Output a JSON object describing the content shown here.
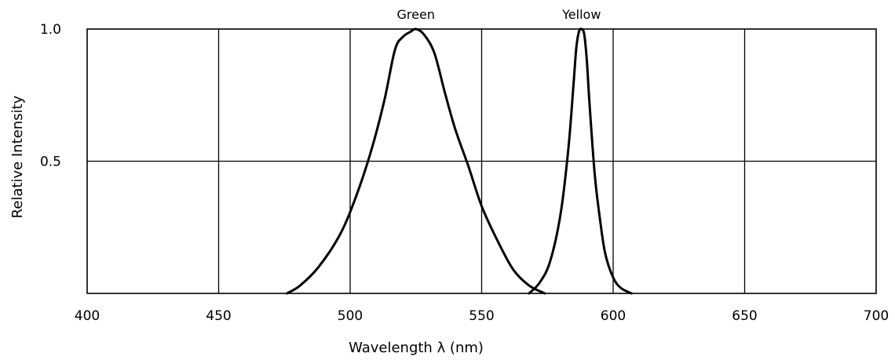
{
  "chart_data": {
    "type": "line",
    "title": "",
    "xlabel": "Wavelength λ (nm)",
    "ylabel": "Relative Intensity",
    "xlim": [
      400,
      700
    ],
    "ylim": [
      0,
      1.0
    ],
    "x_ticks": [
      400,
      450,
      500,
      550,
      600,
      650,
      700
    ],
    "x_tick_labels": [
      "400",
      "450",
      "500",
      "550",
      "600",
      "650",
      "700"
    ],
    "y_ticks": [
      0.5,
      1.0
    ],
    "y_tick_labels": [
      "0.5",
      "1.0"
    ],
    "grid": true,
    "legend": "none",
    "series": [
      {
        "name": "Green",
        "label_x": 525,
        "x": [
          476,
          481,
          488,
          496,
          502,
          508,
          513,
          517,
          520,
          523,
          525,
          528,
          532,
          536,
          540,
          545,
          550,
          556,
          562,
          568,
          574
        ],
        "y": [
          0.0,
          0.03,
          0.1,
          0.22,
          0.36,
          0.54,
          0.73,
          0.92,
          0.97,
          0.99,
          1.0,
          0.98,
          0.91,
          0.76,
          0.62,
          0.48,
          0.33,
          0.2,
          0.09,
          0.03,
          0.0
        ]
      },
      {
        "name": "Yellow",
        "label_x": 588,
        "x": [
          568,
          572,
          576,
          580,
          583,
          585,
          586,
          587,
          588,
          589,
          590,
          591,
          593,
          595,
          597,
          600,
          603,
          607
        ],
        "y": [
          0.0,
          0.04,
          0.12,
          0.3,
          0.55,
          0.8,
          0.93,
          0.99,
          1.0,
          0.98,
          0.88,
          0.72,
          0.45,
          0.28,
          0.15,
          0.06,
          0.02,
          0.0
        ]
      }
    ]
  }
}
